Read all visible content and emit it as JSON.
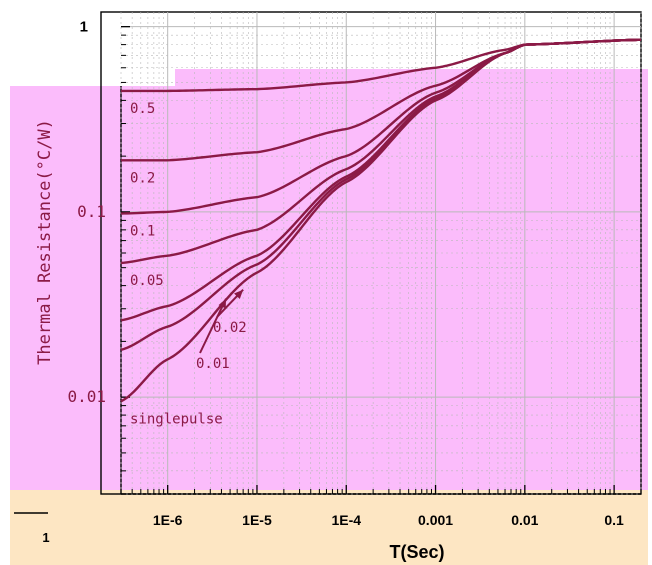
{
  "chart_data": {
    "type": "line",
    "xlabel": "T(Sec)",
    "ylabel": "Thermal Resistance(°C/W)",
    "xscale": "log",
    "yscale": "log",
    "xlim": [
      3e-07,
      0.2
    ],
    "ylim": [
      0.003,
      1.2
    ],
    "x_ticks": [
      {
        "value": 1e-06,
        "label": "1E-6"
      },
      {
        "value": 1e-05,
        "label": "1E-5"
      },
      {
        "value": 0.0001,
        "label": "1E-4"
      },
      {
        "value": 0.001,
        "label": "0.001"
      },
      {
        "value": 0.01,
        "label": "0.01"
      },
      {
        "value": 0.1,
        "label": "0.1"
      }
    ],
    "y_ticks": [
      {
        "value": 1,
        "label": "1"
      },
      {
        "value": 0.1,
        "label": "0.1"
      },
      {
        "value": 0.01,
        "label": "0.01"
      }
    ],
    "extra_x_label": "1",
    "grid": true,
    "series": [
      {
        "name": "0.5",
        "points": [
          [
            3e-07,
            0.45
          ],
          [
            1e-06,
            0.45
          ],
          [
            1e-05,
            0.46
          ],
          [
            0.0001,
            0.5
          ],
          [
            0.001,
            0.6
          ],
          [
            0.006,
            0.75
          ],
          [
            0.01,
            0.8
          ],
          [
            0.2,
            0.85
          ]
        ]
      },
      {
        "name": "0.2",
        "points": [
          [
            3e-07,
            0.19
          ],
          [
            1e-06,
            0.19
          ],
          [
            1e-05,
            0.21
          ],
          [
            0.0001,
            0.28
          ],
          [
            0.001,
            0.48
          ],
          [
            0.006,
            0.72
          ],
          [
            0.01,
            0.8
          ],
          [
            0.2,
            0.85
          ]
        ]
      },
      {
        "name": "0.1",
        "points": [
          [
            3e-07,
            0.098
          ],
          [
            1e-06,
            0.1
          ],
          [
            1e-05,
            0.12
          ],
          [
            0.0001,
            0.2
          ],
          [
            0.001,
            0.44
          ],
          [
            0.006,
            0.72
          ],
          [
            0.01,
            0.8
          ],
          [
            0.2,
            0.85
          ]
        ]
      },
      {
        "name": "0.05",
        "points": [
          [
            3e-07,
            0.053
          ],
          [
            1e-06,
            0.058
          ],
          [
            1e-05,
            0.08
          ],
          [
            0.0001,
            0.17
          ],
          [
            0.001,
            0.42
          ],
          [
            0.006,
            0.72
          ],
          [
            0.01,
            0.8
          ],
          [
            0.2,
            0.85
          ]
        ]
      },
      {
        "name": "0.02",
        "points": [
          [
            3e-07,
            0.026
          ],
          [
            1e-06,
            0.031
          ],
          [
            1e-05,
            0.058
          ],
          [
            0.0001,
            0.155
          ],
          [
            0.001,
            0.41
          ],
          [
            0.006,
            0.72
          ],
          [
            0.01,
            0.8
          ],
          [
            0.2,
            0.85
          ]
        ]
      },
      {
        "name": "0.01",
        "points": [
          [
            3e-07,
            0.018
          ],
          [
            1e-06,
            0.024
          ],
          [
            1e-05,
            0.052
          ],
          [
            0.0001,
            0.15
          ],
          [
            0.001,
            0.41
          ],
          [
            0.006,
            0.72
          ],
          [
            0.01,
            0.8
          ],
          [
            0.2,
            0.85
          ]
        ]
      },
      {
        "name": "singlepulse",
        "points": [
          [
            3e-07,
            0.0095
          ],
          [
            1e-06,
            0.016
          ],
          [
            1e-05,
            0.047
          ],
          [
            0.0001,
            0.145
          ],
          [
            0.001,
            0.4
          ],
          [
            0.006,
            0.72
          ],
          [
            0.01,
            0.8
          ],
          [
            0.2,
            0.85
          ]
        ]
      }
    ],
    "annotations": [
      {
        "text": "0.02",
        "arrow_to": [
          7e-06,
          0.038
        ]
      },
      {
        "text": "0.01",
        "arrow_to": [
          4.5e-06,
          0.034
        ]
      }
    ],
    "colors": {
      "curve": "#8b1a46",
      "page_bg": "#ffffff",
      "tint_main": "#fbbcfb",
      "tint_bottom": "#fde6c3",
      "grid": "#b9b9b9"
    }
  }
}
